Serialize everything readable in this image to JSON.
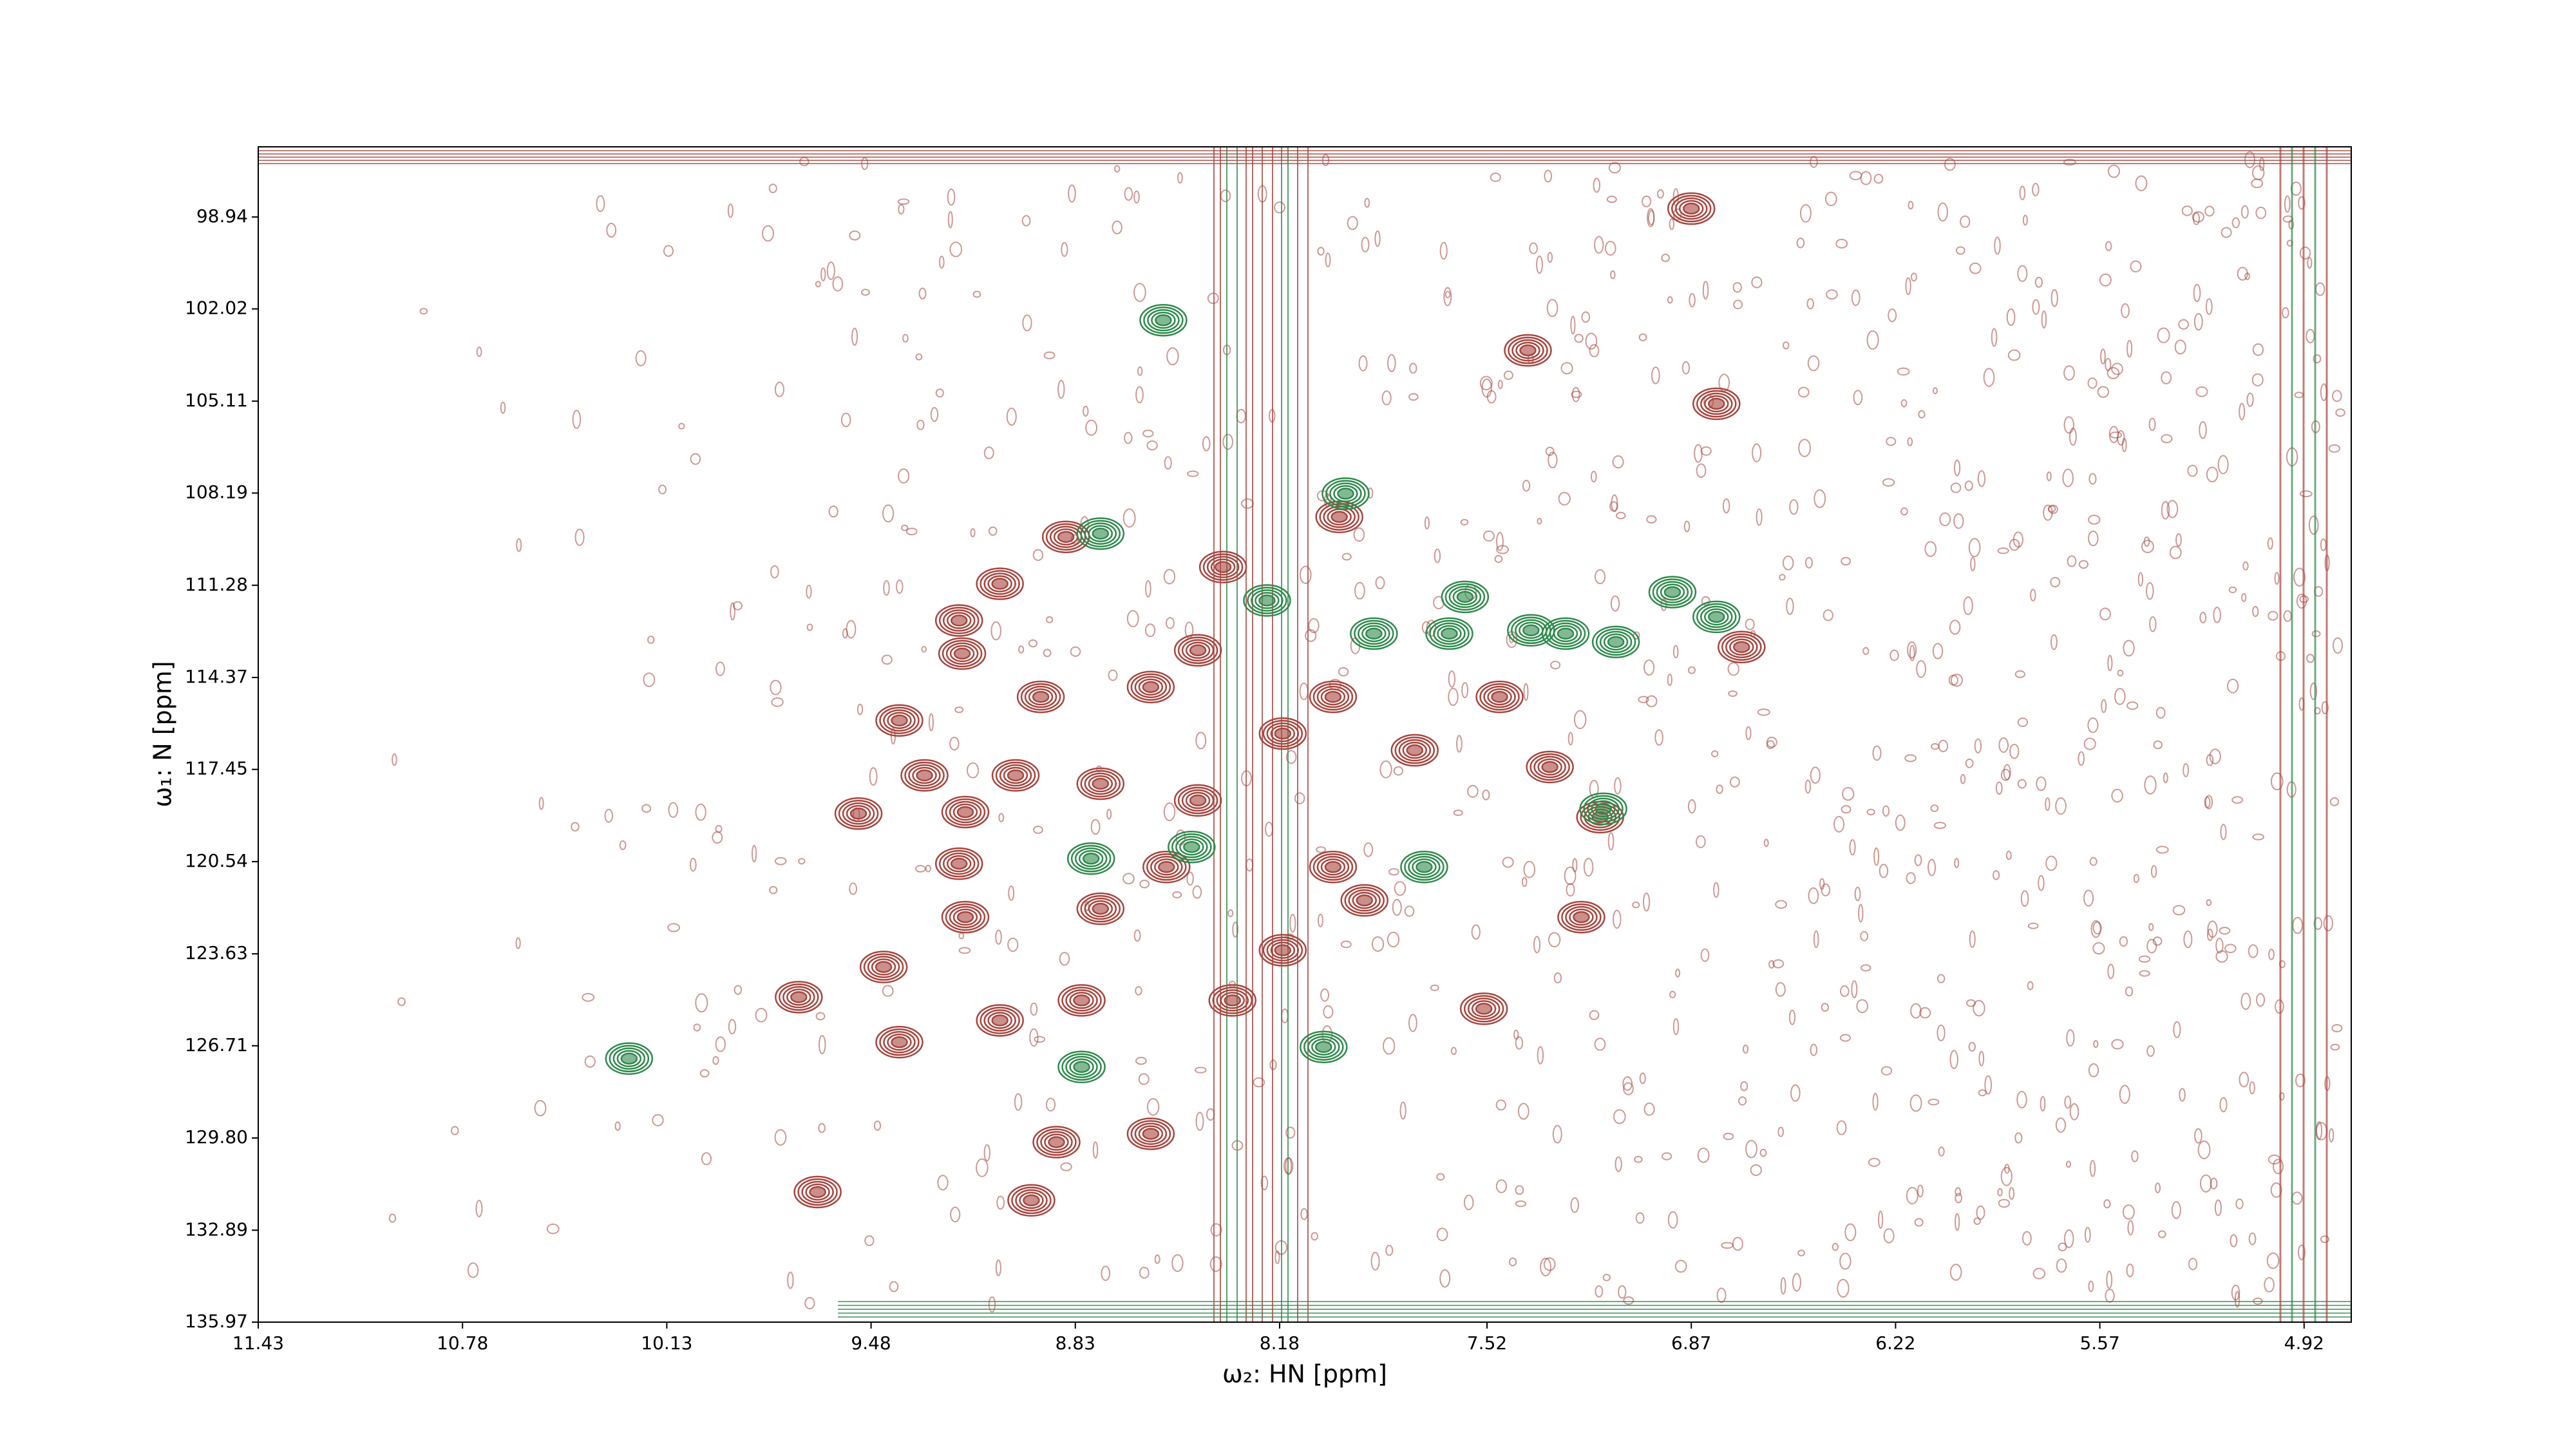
{
  "chart_data": {
    "type": "contour",
    "x_label": "ω₂: HN [ppm]",
    "y_label": "ω₁: N [ppm]",
    "xlim": [
      11.43,
      4.77
    ],
    "ylim": [
      135.97,
      96.59
    ],
    "xticks": [
      11.43,
      10.78,
      10.13,
      9.48,
      8.83,
      8.18,
      7.52,
      6.87,
      6.22,
      5.57,
      4.92
    ],
    "yticks": [
      98.94,
      102.02,
      105.11,
      108.19,
      111.28,
      114.37,
      117.45,
      120.54,
      123.63,
      126.71,
      {
        "value": 129.8,
        "label": "129.80"
      },
      132.89,
      135.97
    ],
    "series": [
      {
        "color": "#a8453e",
        "x": [
          6.87,
          7.39,
          6.79,
          7.99,
          8.86,
          8.36,
          9.07,
          9.2,
          9.19,
          8.44,
          8.59,
          8.94,
          9.39,
          8.01,
          7.48,
          9.31,
          9.18,
          9.52,
          9.02,
          8.17,
          7.32,
          7.16,
          7.22,
          9.2,
          9.18,
          8.75,
          8.54,
          9.71,
          9.44,
          9.39,
          9.07,
          8.81,
          8.59,
          8.89,
          8.97,
          9.65,
          7.53,
          6.71,
          8.01,
          8.33,
          7.75,
          8.75,
          8.44,
          8.17,
          7.91
        ],
        "values": [
          98.66,
          103.41,
          105.2,
          108.99,
          109.66,
          110.67,
          111.23,
          112.46,
          113.57,
          113.46,
          114.69,
          115.02,
          115.81,
          115.02,
          115.02,
          117.65,
          118.88,
          118.93,
          117.65,
          116.25,
          117.37,
          119.05,
          122.4,
          120.61,
          122.4,
          122.12,
          120.72,
          125.08,
          124.07,
          126.59,
          125.86,
          125.19,
          129.66,
          129.94,
          131.89,
          131.61,
          125.47,
          113.35,
          120.72,
          125.19,
          116.81,
          117.93,
          118.49,
          123.51,
          121.84
        ]
      },
      {
        "color": "#2f8a4c",
        "x": [
          8.55,
          8.75,
          7.97,
          10.25,
          8.81,
          8.04,
          7.15,
          7.59,
          7.38,
          6.93,
          6.79,
          7.64,
          8.46,
          7.88,
          8.78,
          7.72,
          7.27,
          7.11,
          8.22
        ],
        "values": [
          102.4,
          109.55,
          108.21,
          127.14,
          127.42,
          126.75,
          118.77,
          111.67,
          112.79,
          111.51,
          112.34,
          112.9,
          120.05,
          112.9,
          120.44,
          120.72,
          112.9,
          113.18,
          111.79
        ]
      }
    ]
  }
}
